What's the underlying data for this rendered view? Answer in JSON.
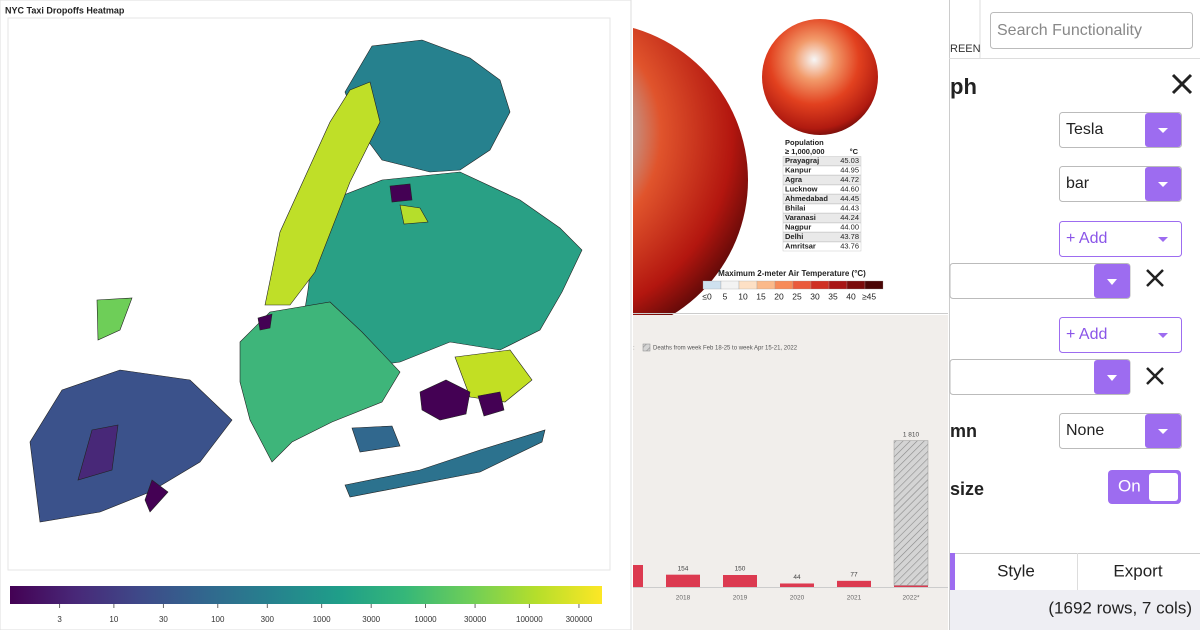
{
  "map_panel": {
    "title": "NYC Taxi Dropoffs Heatmap"
  },
  "chart_data": [
    {
      "type": "colorbar",
      "log_scale": true,
      "xlim": [
        1,
        500000
      ],
      "xticks": [
        3,
        10,
        30,
        100,
        300,
        1000,
        3000,
        10000,
        30000,
        100000,
        300000
      ],
      "colors": [
        "#440154",
        "#482878",
        "#3e4a89",
        "#31688e",
        "#26828e",
        "#1f9e89",
        "#35b779",
        "#6ece58",
        "#b5de2b",
        "#fde725"
      ]
    },
    {
      "type": "bar",
      "legend": "top-left",
      "categories": [
        null,
        "2018",
        "2019",
        "2020",
        "2021",
        "2022*"
      ],
      "ylim": [
        0,
        1900
      ],
      "series": [
        {
          "color": "#dc3a50",
          "values": [
            275,
            154,
            150,
            44,
            77,
            20
          ],
          "value_labels": [
            null,
            "154",
            "150",
            "44",
            "77",
            null
          ]
        },
        {
          "name": "Deaths from week Feb 18-25 to week Apr 15-21, 2022",
          "color": "#b8b8b8",
          "pattern": "hatch",
          "values": [
            null,
            null,
            null,
            null,
            null,
            1810
          ],
          "value_labels": [
            null,
            null,
            null,
            null,
            null,
            "1 810"
          ]
        }
      ]
    }
  ],
  "temperature_panel": {
    "table_header": [
      "Population",
      "≥ 1,000,000",
      "°C"
    ],
    "rows": [
      [
        "Prayagraj",
        "45.03"
      ],
      [
        "Kanpur",
        "44.95"
      ],
      [
        "Agra",
        "44.72"
      ],
      [
        "Lucknow",
        "44.60"
      ],
      [
        "Ahmedabad",
        "44.45"
      ],
      [
        "Bhilai",
        "44.43"
      ],
      [
        "Varanasi",
        "44.24"
      ],
      [
        "Nagpur",
        "44.00"
      ],
      [
        "Delhi",
        "43.78"
      ],
      [
        "Amritsar",
        "43.76"
      ]
    ],
    "colorbar_title": "Maximum 2-meter Air Temperature (°C)",
    "colorbar_labels": [
      "≤0",
      "5",
      "10",
      "15",
      "20",
      "25",
      "30",
      "35",
      "40",
      "≥45"
    ],
    "colorbar_colors": [
      "#cfe1ef",
      "#f3f3f3",
      "#fde0c5",
      "#fbb98a",
      "#f78a58",
      "#ea5a3b",
      "#cf2f22",
      "#a81616",
      "#7a0c0c",
      "#4a0606"
    ]
  },
  "ui_panel": {
    "search_placeholder": "Search Functionality",
    "tab_fragment": "REEN",
    "heading_fragment": "ph",
    "dropdowns": [
      "Tesla",
      "bar",
      "+ Add",
      "+ Add",
      "None"
    ],
    "labels": [
      "mn",
      "size"
    ],
    "toggle": "On",
    "tabs": [
      "Style",
      "Export"
    ],
    "status": "(1692 rows, 7 cols)"
  }
}
